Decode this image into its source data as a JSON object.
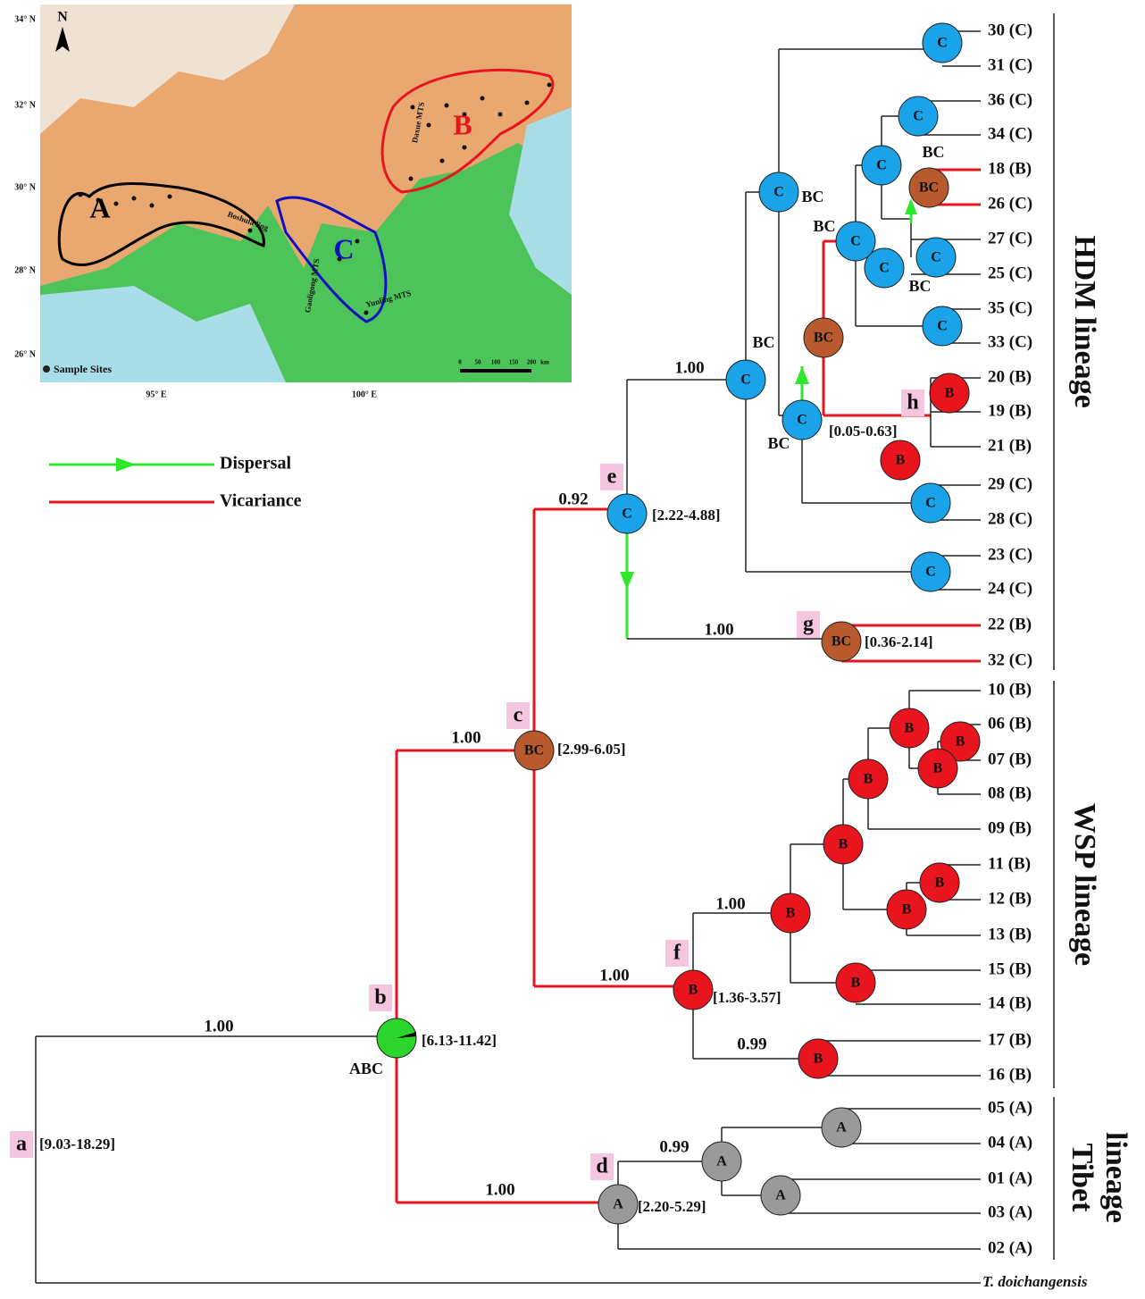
{
  "map": {
    "latitudes": [
      "34° N",
      "32° N",
      "30° N",
      "28° N",
      "26° N"
    ],
    "longitudes": [
      "95° E",
      "100° E"
    ],
    "areas": [
      "A",
      "B",
      "C"
    ],
    "north": "N",
    "sample_sites": "Sample Sites",
    "mountains": [
      "Boshula ling",
      "Daxue MTS",
      "Gaoligong MTS",
      "Yunling MTS"
    ],
    "scale": [
      "0",
      "50",
      "100",
      "150",
      "200",
      "km"
    ]
  },
  "legend": {
    "dispersal": "Dispersal",
    "vicariance": "Vicariance"
  },
  "tree": {
    "leaves": [
      "30 (C)",
      "31 (C)",
      "36 (C)",
      "34 (C)",
      "18 (B)",
      "26 (C)",
      "27 (C)",
      "25 (C)",
      "35 (C)",
      "33 (C)",
      "20 (B)",
      "19 (B)",
      "21 (B)",
      "29 (C)",
      "28 (C)",
      "23 (C)",
      "24 (C)",
      "22 (B)",
      "32 (C)",
      "10 (B)",
      "06 (B)",
      "07 (B)",
      "08 (B)",
      "09 (B)",
      "11 (B)",
      "12 (B)",
      "13 (B)",
      "15 (B)",
      "14 (B)",
      "17 (B)",
      "16 (B)",
      "05 (A)",
      "04 (A)",
      "01 (A)",
      "03 (A)",
      "02 (A)"
    ],
    "outgroup": "T. doichangensis",
    "node_tags": [
      "a",
      "b",
      "c",
      "d",
      "e",
      "f",
      "g",
      "h"
    ],
    "node_ages": [
      "[9.03-18.29]",
      "[6.13-11.42]",
      "[2.99-6.05]",
      "[2.20-5.29]",
      "[2.22-4.88]",
      "[1.36-3.57]",
      "[0.36-2.14]",
      "[0.05-0.63]"
    ],
    "supports": [
      "1.00",
      "0.92",
      "1.00",
      "1.00",
      "1.00",
      "1.00",
      "0.99",
      "1.00",
      "0.99",
      "1.00"
    ],
    "pies": [
      "C",
      "C",
      "C",
      "BC",
      "C",
      "C",
      "C",
      "C",
      "BC",
      "C",
      "B",
      "C",
      "B",
      "C",
      "C",
      "C",
      "C",
      "BC",
      "BC",
      "B",
      "B",
      "B",
      "B",
      "B",
      "B",
      "B",
      "B",
      "B",
      "B",
      "B",
      "A",
      "A",
      "A",
      "A"
    ],
    "annotations": [
      "BC",
      "BC",
      "BC",
      "BC",
      "BC",
      "BC",
      "ABC"
    ],
    "lineages": [
      [
        "HDM lineage"
      ],
      [
        "WSP lineage"
      ],
      [
        "Tibet",
        "lineage"
      ]
    ]
  }
}
